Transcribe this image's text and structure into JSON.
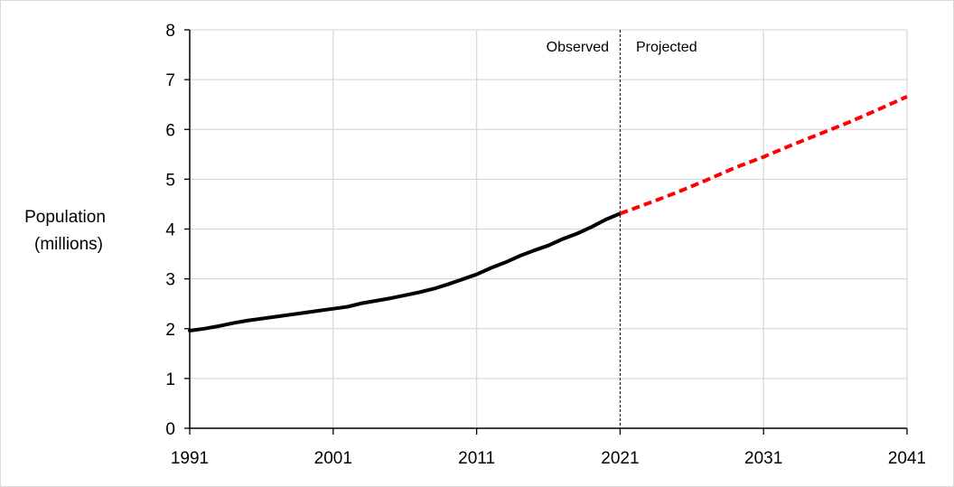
{
  "chart_data": {
    "type": "line",
    "title": "",
    "xlabel": "",
    "ylabel": [
      "Population",
      "(millions)"
    ],
    "xlim": [
      1991,
      2041
    ],
    "ylim": [
      0,
      8
    ],
    "x_ticks": [
      1991,
      2001,
      2011,
      2021,
      2031,
      2041
    ],
    "y_ticks": [
      0,
      1,
      2,
      3,
      4,
      5,
      6,
      7,
      8
    ],
    "grid": "vertical and horizontal",
    "divider_year": 2021,
    "annotations": [
      "Observed",
      "Projected"
    ],
    "series": [
      {
        "style": "solid",
        "color": "#000000",
        "x": [
          1991,
          1992,
          1993,
          1994,
          1995,
          1996,
          1997,
          1998,
          1999,
          2000,
          2001,
          2002,
          2003,
          2004,
          2005,
          2006,
          2007,
          2008,
          2009,
          2010,
          2011,
          2012,
          2013,
          2014,
          2015,
          2016,
          2017,
          2018,
          2019,
          2020,
          2021
        ],
        "values": [
          1.96,
          2.0,
          2.05,
          2.11,
          2.16,
          2.2,
          2.24,
          2.28,
          2.32,
          2.36,
          2.4,
          2.44,
          2.51,
          2.56,
          2.61,
          2.67,
          2.73,
          2.8,
          2.89,
          2.99,
          3.09,
          3.22,
          3.33,
          3.46,
          3.57,
          3.67,
          3.8,
          3.91,
          4.04,
          4.19,
          4.31
        ]
      },
      {
        "style": "dashed",
        "color": "#ff0000",
        "x": [
          2021,
          2023,
          2025,
          2027,
          2029,
          2031,
          2033,
          2035,
          2037,
          2039,
          2041
        ],
        "values": [
          4.31,
          4.52,
          4.74,
          4.98,
          5.23,
          5.45,
          5.69,
          5.92,
          6.15,
          6.4,
          6.66
        ]
      }
    ]
  }
}
